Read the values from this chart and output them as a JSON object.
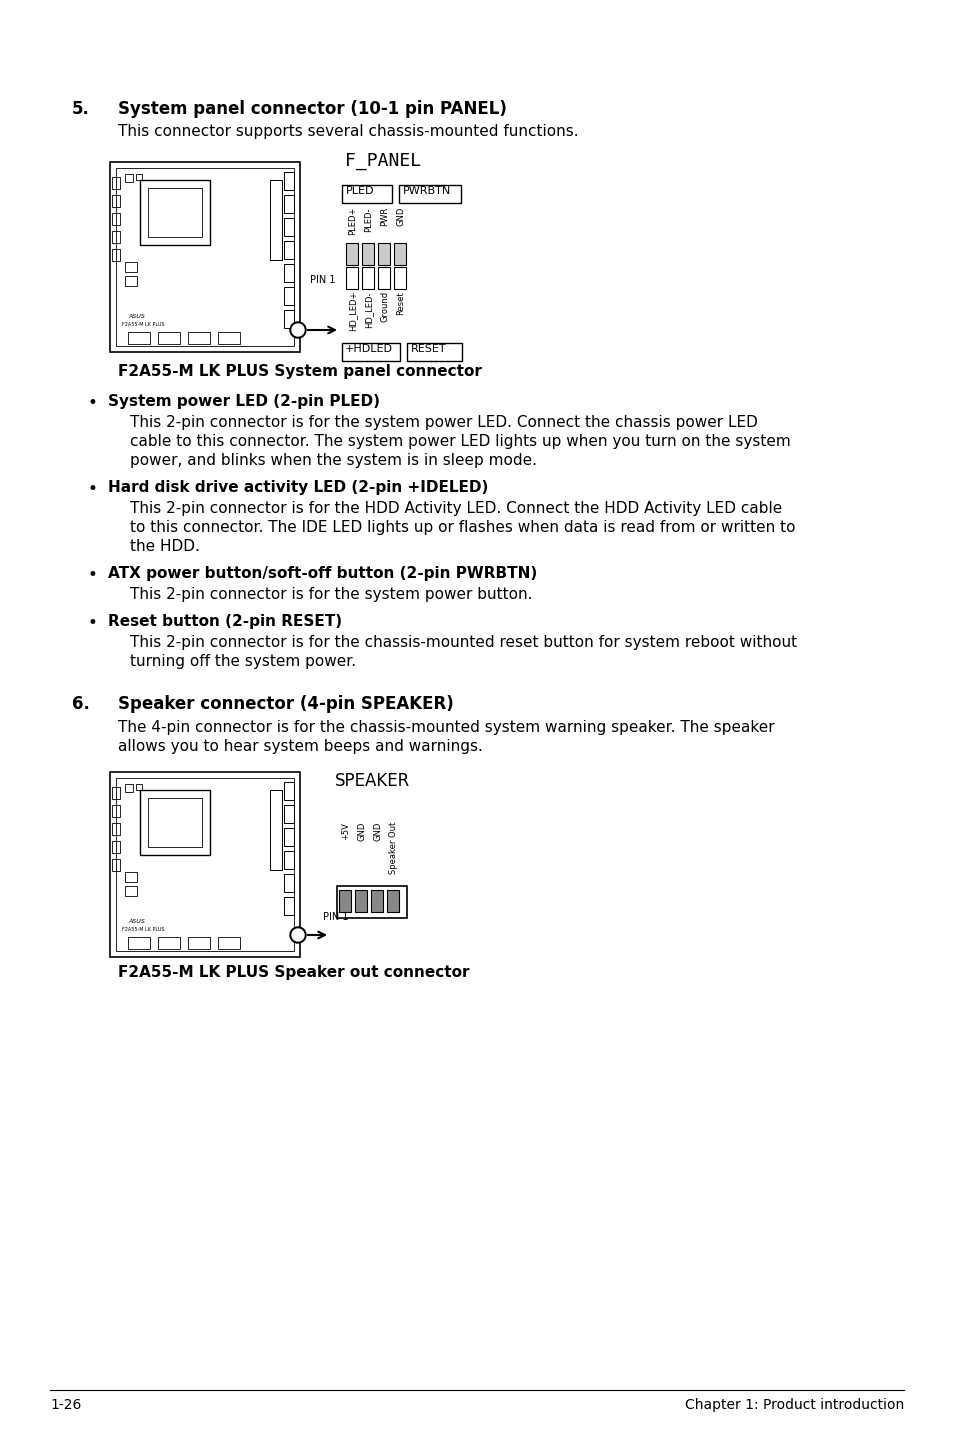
{
  "bg_color": "#ffffff",
  "section5_number": "5.",
  "section5_title": "System panel connector (10-1 pin PANEL)",
  "section5_intro": "This connector supports several chassis-mounted functions.",
  "fpanel_label": "F_PANEL",
  "fpanel_caption": "F2A55-M LK PLUS System panel connector",
  "bullets": [
    {
      "title": "System power LED (2-pin PLED)",
      "body": "This 2-pin connector is for the system power LED. Connect the chassis power LED\ncable to this connector. The system power LED lights up when you turn on the system\npower, and blinks when the system is in sleep mode."
    },
    {
      "title": "Hard disk drive activity LED (2-pin +IDELED)",
      "body": "This 2-pin connector is for the HDD Activity LED. Connect the HDD Activity LED cable\nto this connector. The IDE LED lights up or flashes when data is read from or written to\nthe HDD."
    },
    {
      "title": "ATX power button/soft-off button (2-pin PWRBTN)",
      "body": "This 2-pin connector is for the system power button."
    },
    {
      "title": "Reset button (2-pin RESET)",
      "body": "This 2-pin connector is for the chassis-mounted reset button for system reboot without\nturning off the system power."
    }
  ],
  "section6_number": "6.",
  "section6_title": "Speaker connector (4-pin SPEAKER)",
  "section6_intro": "The 4-pin connector is for the chassis-mounted system warning speaker. The speaker\nallows you to hear system beeps and warnings.",
  "speaker_label": "SPEAKER",
  "speaker_caption": "F2A55-M LK PLUS Speaker out connector",
  "footer_left": "1-26",
  "footer_right": "Chapter 1: Product introduction",
  "fpanel_top_labels": [
    "PLED+",
    "PLED-",
    "PWR",
    "GND"
  ],
  "fpanel_bot_labels": [
    "HD_LED+",
    "HD_LED-",
    "Ground",
    "Reset"
  ],
  "speaker_pin_labels": [
    "+5V",
    "GND",
    "GND",
    "Speaker Out"
  ]
}
